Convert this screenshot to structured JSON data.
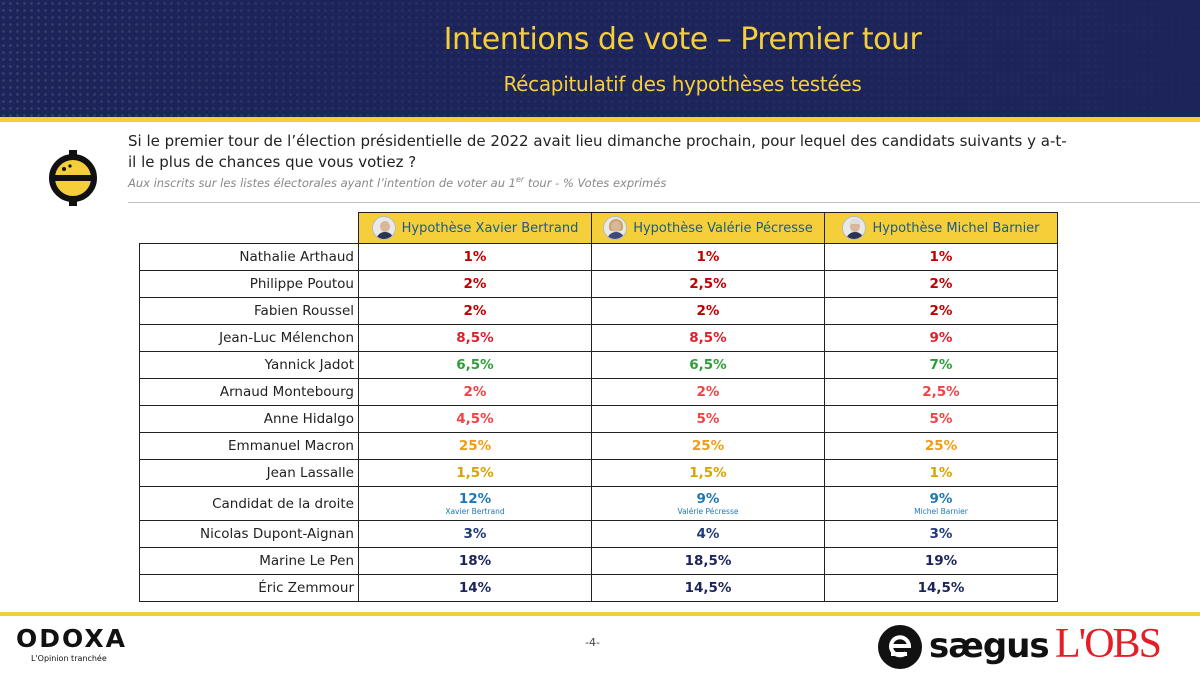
{
  "header": {
    "title": "Intentions de vote – Premier tour",
    "subtitle": "Récapitulatif des hypothèses testées"
  },
  "question": {
    "text": "Si le premier tour de l’élection présidentielle de 2022 avait lieu dimanche prochain, pour lequel des candidats suivants y a-t-il le plus de chances que vous votiez ?",
    "note_prefix": "Aux inscrits sur les listes électorales ayant l’intention de voter au 1",
    "note_sup": "er",
    "note_suffix": " tour - % Votes exprimés"
  },
  "table": {
    "hypotheses": [
      "Hypothèse Xavier Bertrand",
      "Hypothèse Valérie Pécresse",
      "Hypothèse Michel Barnier"
    ],
    "rows": [
      {
        "name": "Nathalie Arthaud",
        "color": "#c00000",
        "values": [
          "1%",
          "1%",
          "1%"
        ]
      },
      {
        "name": "Philippe Poutou",
        "color": "#c00000",
        "values": [
          "2%",
          "2,5%",
          "2%"
        ]
      },
      {
        "name": "Fabien Roussel",
        "color": "#c00000",
        "values": [
          "2%",
          "2%",
          "2%"
        ]
      },
      {
        "name": "Jean-Luc Mélenchon",
        "color": "#e01f2d",
        "values": [
          "8,5%",
          "8,5%",
          "9%"
        ]
      },
      {
        "name": "Yannick Jadot",
        "color": "#2e9e3a",
        "values": [
          "6,5%",
          "6,5%",
          "7%"
        ]
      },
      {
        "name": "Arnaud Montebourg",
        "color": "#ef4444",
        "values": [
          "2%",
          "2%",
          "2,5%"
        ]
      },
      {
        "name": "Anne Hidalgo",
        "color": "#ef4444",
        "values": [
          "4,5%",
          "5%",
          "5%"
        ]
      },
      {
        "name": "Emmanuel Macron",
        "color": "#f39c12",
        "values": [
          "25%",
          "25%",
          "25%"
        ]
      },
      {
        "name": "Jean Lassalle",
        "color": "#d9a400",
        "values": [
          "1,5%",
          "1,5%",
          "1%"
        ]
      },
      {
        "name": "Candidat de la droite",
        "color": "#1f78b4",
        "values": [
          "12%",
          "9%",
          "9%"
        ],
        "subs": [
          "Xavier Bertrand",
          "Valérie Pécresse",
          "Michel Barnier"
        ]
      },
      {
        "name": "Nicolas Dupont-Aignan",
        "color": "#1f3a7a",
        "values": [
          "3%",
          "4%",
          "3%"
        ]
      },
      {
        "name": "Marine Le Pen",
        "color": "#1c2459",
        "values": [
          "18%",
          "18,5%",
          "19%"
        ]
      },
      {
        "name": "Éric Zemmour",
        "color": "#1c2459",
        "values": [
          "14%",
          "14,5%",
          "14,5%"
        ]
      }
    ]
  },
  "footer": {
    "odoxa_logo": "ODOXA",
    "odoxa_tagline": "L'Opinion tranchée",
    "page_number": "-4-",
    "saegus_logo": "sægus",
    "obs_logo": "L'OBS"
  },
  "colors": {
    "navy": "#1c2459",
    "yellow": "#f4cf3a",
    "header_text_blue": "#1c5a8a",
    "obs_red": "#e31e24"
  }
}
